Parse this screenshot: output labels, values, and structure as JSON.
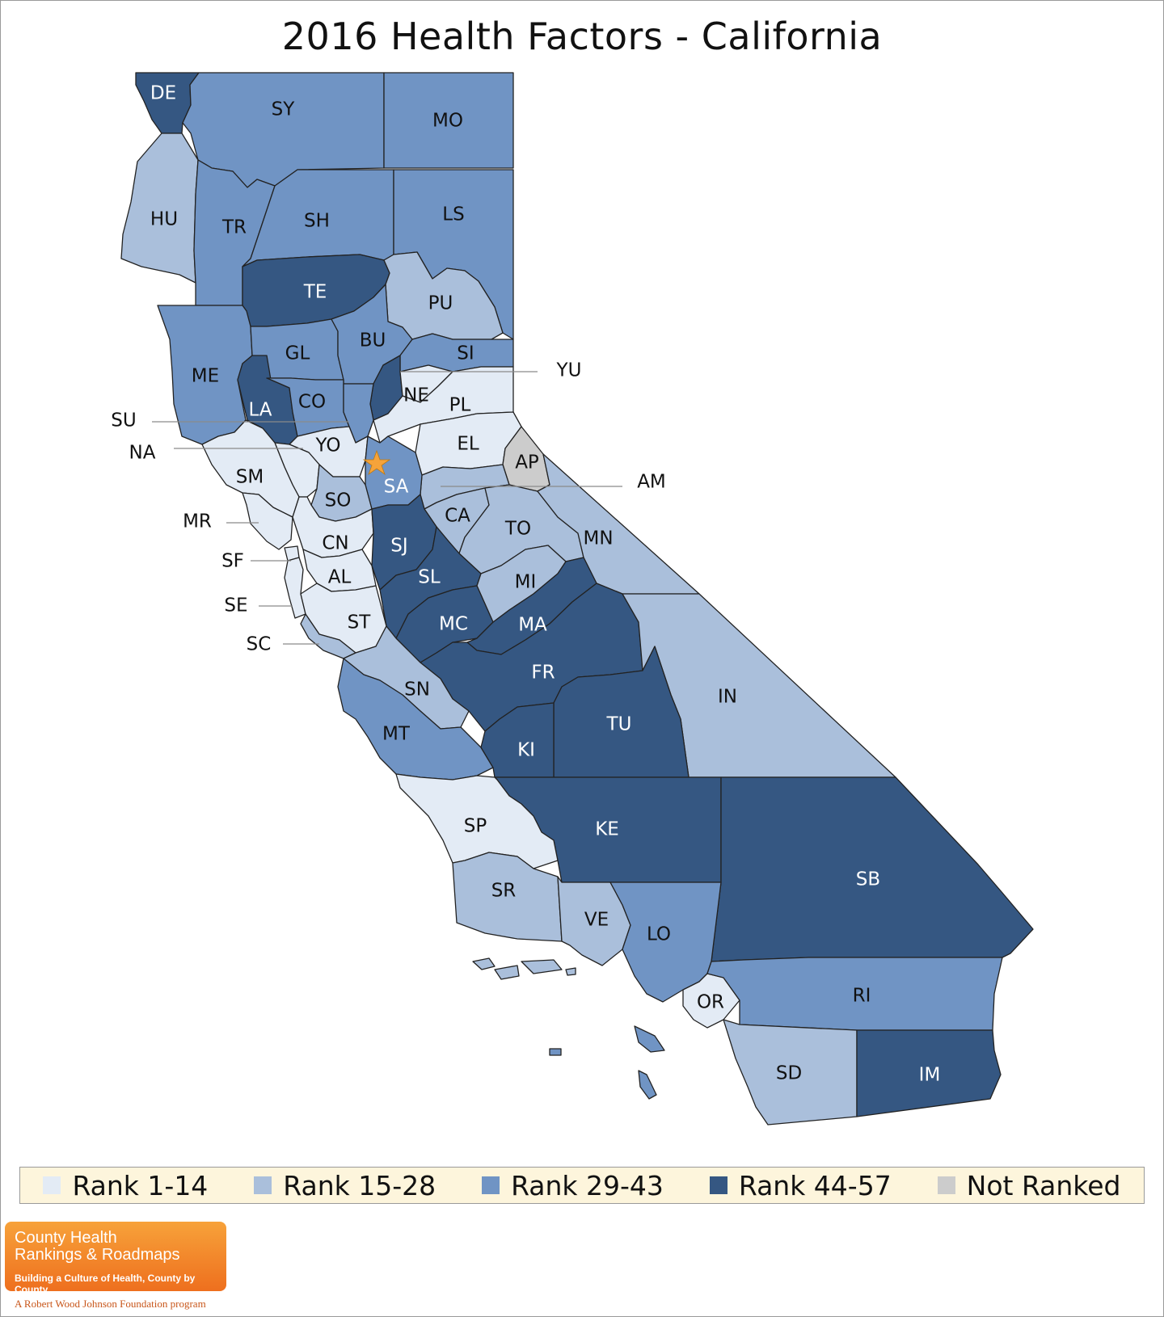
{
  "title": "2016 Health Factors - California",
  "colors": {
    "rank_1_14": "#e3ebf5",
    "rank_15_28": "#aabfdb",
    "rank_29_43": "#7094c4",
    "rank_44_57": "#355782",
    "not_ranked": "#cccccc",
    "border": "#222222",
    "star": "#f5a33a"
  },
  "legend": {
    "items": [
      {
        "label": "Rank 1-14",
        "color": "#e3ebf5"
      },
      {
        "label": "Rank 15-28",
        "color": "#aabfdb"
      },
      {
        "label": "Rank 29-43",
        "color": "#7094c4"
      },
      {
        "label": "Rank 44-57",
        "color": "#355782"
      },
      {
        "label": "Not Ranked",
        "color": "#cccccc"
      }
    ]
  },
  "counties": {
    "DE": {
      "label": "DE",
      "rank_group": "Rank 44-57"
    },
    "SY": {
      "label": "SY",
      "rank_group": "Rank 29-43"
    },
    "MO": {
      "label": "MO",
      "rank_group": "Rank 29-43"
    },
    "HU": {
      "label": "HU",
      "rank_group": "Rank 15-28"
    },
    "TR": {
      "label": "TR",
      "rank_group": "Rank 29-43"
    },
    "SH": {
      "label": "SH",
      "rank_group": "Rank 29-43"
    },
    "LS": {
      "label": "LS",
      "rank_group": "Rank 29-43"
    },
    "TE": {
      "label": "TE",
      "rank_group": "Rank 44-57"
    },
    "PU": {
      "label": "PU",
      "rank_group": "Rank 15-28"
    },
    "ME": {
      "label": "ME",
      "rank_group": "Rank 29-43"
    },
    "GL": {
      "label": "GL",
      "rank_group": "Rank 29-43"
    },
    "BU": {
      "label": "BU",
      "rank_group": "Rank 29-43"
    },
    "SI": {
      "label": "SI",
      "rank_group": "Rank 29-43"
    },
    "LA": {
      "label": "LA",
      "rank_group": "Rank 44-57"
    },
    "CO": {
      "label": "CO",
      "rank_group": "Rank 29-43"
    },
    "YU": {
      "label": "YU",
      "rank_group": "Rank 44-57"
    },
    "NE": {
      "label": "NE",
      "rank_group": "Rank 1-14"
    },
    "PL": {
      "label": "PL",
      "rank_group": "Rank 1-14"
    },
    "SU": {
      "label": "SU",
      "rank_group": "Rank 29-43"
    },
    "YO": {
      "label": "YO",
      "rank_group": "Rank 1-14"
    },
    "EL": {
      "label": "EL",
      "rank_group": "Rank 1-14"
    },
    "NA": {
      "label": "NA",
      "rank_group": "Rank 1-14"
    },
    "AP": {
      "label": "AP",
      "rank_group": "Not Ranked"
    },
    "AM": {
      "label": "AM",
      "rank_group": "Rank 15-28"
    },
    "SM": {
      "label": "SM",
      "rank_group": "Rank 1-14"
    },
    "SA": {
      "label": "SA",
      "rank_group": "Rank 29-43"
    },
    "SO": {
      "label": "SO",
      "rank_group": "Rank 15-28"
    },
    "CA": {
      "label": "CA",
      "rank_group": "Rank 15-28"
    },
    "TO": {
      "label": "TO",
      "rank_group": "Rank 15-28"
    },
    "MR": {
      "label": "MR",
      "rank_group": "Rank 1-14"
    },
    "MN": {
      "label": "MN",
      "rank_group": "Rank 15-28"
    },
    "CN": {
      "label": "CN",
      "rank_group": "Rank 1-14"
    },
    "SJ": {
      "label": "SJ",
      "rank_group": "Rank 44-57"
    },
    "SF": {
      "label": "SF",
      "rank_group": "Rank 1-14"
    },
    "AL": {
      "label": "AL",
      "rank_group": "Rank 1-14"
    },
    "SL": {
      "label": "SL",
      "rank_group": "Rank 44-57"
    },
    "MI": {
      "label": "MI",
      "rank_group": "Rank 15-28"
    },
    "SE": {
      "label": "SE",
      "rank_group": "Rank 1-14"
    },
    "ST": {
      "label": "ST",
      "rank_group": "Rank 1-14"
    },
    "MC": {
      "label": "MC",
      "rank_group": "Rank 44-57"
    },
    "MA": {
      "label": "MA",
      "rank_group": "Rank 44-57"
    },
    "SC": {
      "label": "SC",
      "rank_group": "Rank 15-28"
    },
    "FR": {
      "label": "FR",
      "rank_group": "Rank 44-57"
    },
    "IN": {
      "label": "IN",
      "rank_group": "Rank 15-28"
    },
    "SN": {
      "label": "SN",
      "rank_group": "Rank 15-28"
    },
    "TU": {
      "label": "TU",
      "rank_group": "Rank 44-57"
    },
    "MT": {
      "label": "MT",
      "rank_group": "Rank 29-43"
    },
    "KI": {
      "label": "KI",
      "rank_group": "Rank 44-57"
    },
    "KE": {
      "label": "KE",
      "rank_group": "Rank 44-57"
    },
    "SP": {
      "label": "SP",
      "rank_group": "Rank 1-14"
    },
    "SB": {
      "label": "SB",
      "rank_group": "Rank 44-57"
    },
    "SR": {
      "label": "SR",
      "rank_group": "Rank 15-28"
    },
    "VE": {
      "label": "VE",
      "rank_group": "Rank 15-28"
    },
    "LO": {
      "label": "LO",
      "rank_group": "Rank 29-43"
    },
    "OR": {
      "label": "OR",
      "rank_group": "Rank 1-14"
    },
    "RI": {
      "label": "RI",
      "rank_group": "Rank 29-43"
    },
    "SD": {
      "label": "SD",
      "rank_group": "Rank 15-28"
    },
    "IM": {
      "label": "IM",
      "rank_group": "Rank 44-57"
    }
  },
  "capital_marker": "star-icon",
  "logo": {
    "line1": "County Health",
    "line2": "Rankings & Roadmaps",
    "tagline": "Building a Culture of Health, County by County",
    "program": "A Robert Wood Johnson Foundation program"
  }
}
